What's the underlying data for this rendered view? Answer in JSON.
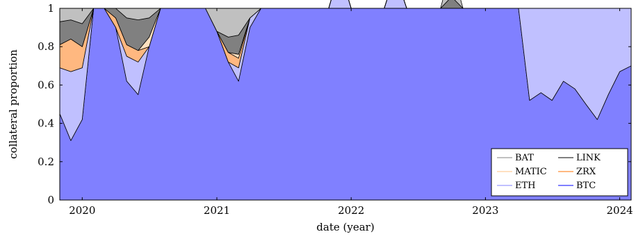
{
  "chart_data": {
    "type": "area",
    "stacked": true,
    "normalized": true,
    "xlabel": "date (year)",
    "ylabel": "collateral proportion",
    "xlim": [
      "2019-11-01",
      "2024-02-01"
    ],
    "ylim": [
      0,
      1
    ],
    "x_ticks": [
      "2020",
      "2021",
      "2022",
      "2023",
      "2024"
    ],
    "y_ticks": [
      "0",
      "0.2",
      "0.4",
      "0.6",
      "0.8",
      "1"
    ],
    "legend_position": "bottom-right",
    "dates": [
      "2019-11-01",
      "2019-12-01",
      "2020-01-01",
      "2020-02-01",
      "2020-03-01",
      "2020-04-01",
      "2020-05-01",
      "2020-06-01",
      "2020-07-01",
      "2020-08-01",
      "2020-09-01",
      "2020-10-01",
      "2020-11-01",
      "2020-12-01",
      "2021-01-01",
      "2021-02-01",
      "2021-03-01",
      "2021-04-01",
      "2021-05-01",
      "2021-06-01",
      "2021-07-01",
      "2021-08-01",
      "2021-09-01",
      "2021-10-01",
      "2021-11-01",
      "2021-12-01",
      "2022-01-01",
      "2022-02-01",
      "2022-03-01",
      "2022-04-01",
      "2022-05-01",
      "2022-06-01",
      "2022-07-01",
      "2022-08-01",
      "2022-09-01",
      "2022-10-01",
      "2022-11-01",
      "2022-12-01",
      "2023-01-01",
      "2023-02-01",
      "2023-03-01",
      "2023-04-01",
      "2023-05-01",
      "2023-06-01",
      "2023-07-01",
      "2023-08-01",
      "2023-09-01",
      "2023-10-01",
      "2023-11-01",
      "2023-12-01",
      "2024-01-01",
      "2024-02-01"
    ],
    "series": [
      {
        "name": "BTC",
        "color": "#8080ff",
        "values": [
          0.45,
          0.31,
          0.42,
          1.0,
          1.0,
          0.9,
          0.62,
          0.55,
          0.8,
          1.0,
          1.0,
          1.0,
          1.0,
          1.0,
          0.88,
          0.72,
          0.62,
          0.9,
          1.0,
          1.0,
          1.0,
          1.0,
          1.0,
          1.0,
          1.0,
          1.0,
          1.0,
          1.0,
          1.0,
          1.0,
          1.0,
          1.0,
          1.0,
          1.0,
          1.0,
          1.0,
          1.0,
          1.0,
          1.0,
          1.0,
          1.0,
          1.0,
          0.52,
          0.56,
          0.52,
          0.62,
          0.58,
          0.5,
          0.42,
          0.55,
          0.67,
          0.7
        ]
      },
      {
        "name": "ETH",
        "color": "#c0c0ff",
        "values": [
          0.24,
          0.36,
          0.27,
          0.0,
          0.0,
          0.0,
          0.13,
          0.17,
          0.0,
          0.0,
          0.0,
          0.0,
          0.0,
          0.0,
          0.0,
          0.0,
          0.07,
          0.05,
          0.0,
          0.0,
          0.0,
          0.0,
          0.0,
          0.0,
          0.0,
          0.2,
          0.0,
          0.0,
          0.0,
          0.0,
          0.18,
          0.0,
          0.0,
          0.0,
          0.0,
          0.0,
          0.0,
          0.0,
          0.0,
          0.0,
          0.0,
          0.0,
          0.48,
          0.44,
          0.48,
          0.38,
          0.42,
          0.5,
          0.58,
          0.45,
          0.33,
          0.3
        ]
      },
      {
        "name": "ZRX",
        "color": "#ffb880",
        "values": [
          0.12,
          0.17,
          0.11,
          0.0,
          0.0,
          0.05,
          0.06,
          0.06,
          0.0,
          0.0,
          0.0,
          0.0,
          0.0,
          0.0,
          0.0,
          0.05,
          0.05,
          0.0,
          0.0,
          0.0,
          0.0,
          0.0,
          0.0,
          0.0,
          0.0,
          0.0,
          0.0,
          0.0,
          0.0,
          0.0,
          0.0,
          0.0,
          0.0,
          0.0,
          0.0,
          0.0,
          0.0,
          0.0,
          0.0,
          0.0,
          0.0,
          0.0,
          0.0,
          0.0,
          0.0,
          0.0,
          0.0,
          0.0,
          0.0,
          0.0,
          0.0,
          0.0
        ]
      },
      {
        "name": "MATIC",
        "color": "#ffe0c0",
        "values": [
          0.0,
          0.0,
          0.0,
          0.0,
          0.0,
          0.0,
          0.0,
          0.0,
          0.05,
          0.0,
          0.0,
          0.0,
          0.0,
          0.0,
          0.0,
          0.0,
          0.02,
          0.0,
          0.0,
          0.0,
          0.0,
          0.0,
          0.0,
          0.0,
          0.0,
          0.0,
          0.0,
          0.0,
          0.0,
          0.0,
          0.0,
          0.0,
          0.0,
          0.0,
          0.0,
          0.0,
          0.0,
          0.0,
          0.0,
          0.0,
          0.0,
          0.0,
          0.0,
          0.0,
          0.0,
          0.0,
          0.0,
          0.0,
          0.0,
          0.0,
          0.0,
          0.0
        ]
      },
      {
        "name": "LINK",
        "color": "#808080",
        "values": [
          0.12,
          0.1,
          0.12,
          0.0,
          0.0,
          0.05,
          0.14,
          0.16,
          0.1,
          0.0,
          0.0,
          0.0,
          0.0,
          0.0,
          0.0,
          0.08,
          0.1,
          0.0,
          0.0,
          0.0,
          0.0,
          0.0,
          0.0,
          0.0,
          0.0,
          0.0,
          0.0,
          0.0,
          0.0,
          0.0,
          0.0,
          0.0,
          0.0,
          0.0,
          0.0,
          0.06,
          0.0,
          0.0,
          0.0,
          0.0,
          0.0,
          0.0,
          0.0,
          0.0,
          0.0,
          0.0,
          0.0,
          0.0,
          0.0,
          0.0,
          0.0,
          0.0
        ]
      },
      {
        "name": "BAT",
        "color": "#c0c0c0",
        "values": [
          0.07,
          0.06,
          0.08,
          0.0,
          0.0,
          0.0,
          0.05,
          0.06,
          0.05,
          0.0,
          0.0,
          0.0,
          0.0,
          0.0,
          0.12,
          0.15,
          0.14,
          0.05,
          0.0,
          0.0,
          0.0,
          0.0,
          0.0,
          0.0,
          0.0,
          0.0,
          0.0,
          0.0,
          0.0,
          0.0,
          0.0,
          0.0,
          0.0,
          0.0,
          0.0,
          0.16,
          0.0,
          0.0,
          0.0,
          0.0,
          0.0,
          0.0,
          0.0,
          0.0,
          0.0,
          0.0,
          0.0,
          0.0,
          0.0,
          0.0,
          0.0,
          0.0
        ]
      }
    ],
    "legend": [
      {
        "label": "BAT",
        "color": "#c0c0c0"
      },
      {
        "label": "LINK",
        "color": "#808080"
      },
      {
        "label": "MATIC",
        "color": "#ffe0c0"
      },
      {
        "label": "ZRX",
        "color": "#ffb880"
      },
      {
        "label": "ETH",
        "color": "#c0c0ff"
      },
      {
        "label": "BTC",
        "color": "#8080ff"
      }
    ]
  }
}
